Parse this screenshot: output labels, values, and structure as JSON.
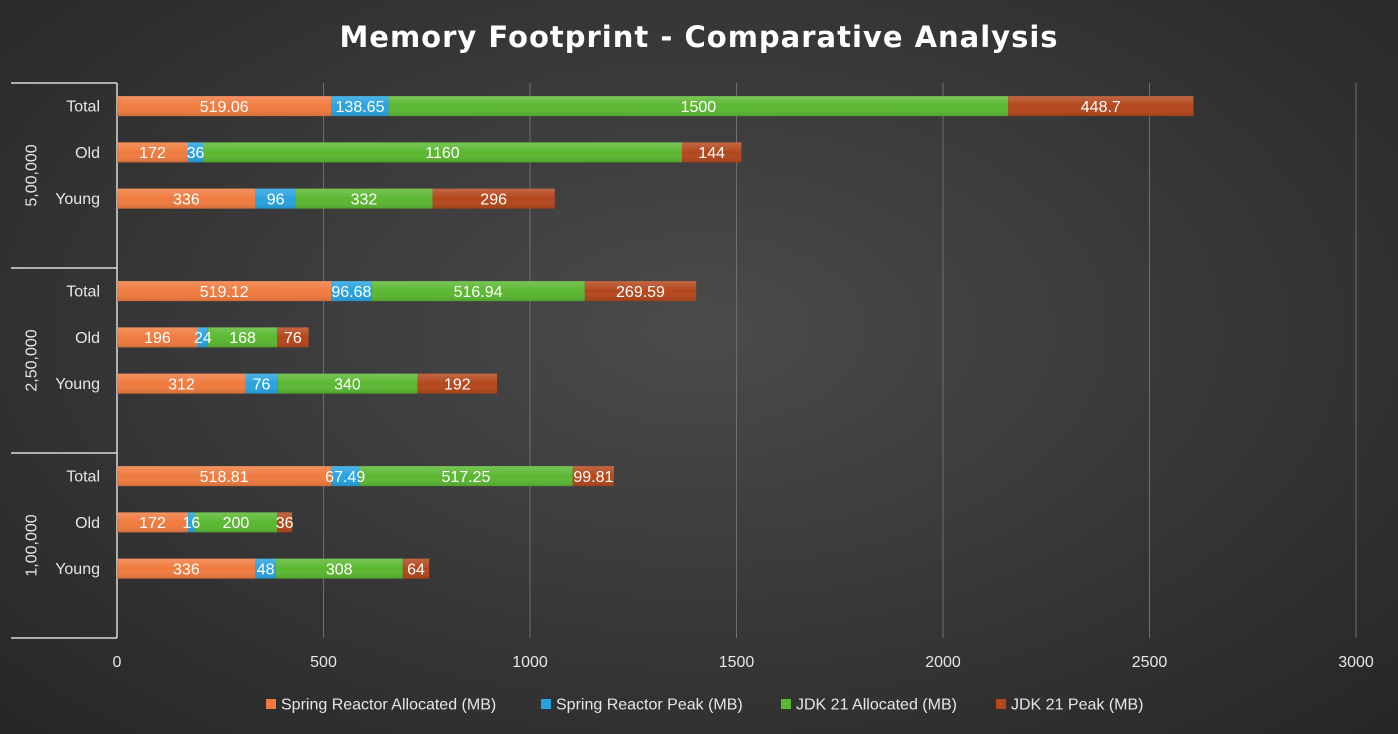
{
  "chart_data": {
    "type": "bar",
    "orientation": "horizontal",
    "stacked": true,
    "title": "Memory Footprint - Comparative Analysis",
    "xlabel": "",
    "ylabel": "",
    "xlim": [
      0,
      3000
    ],
    "x_ticks": [
      "0",
      "500",
      "1000",
      "1500",
      "2000",
      "2500",
      "3000"
    ],
    "grid": "vertical",
    "legend_position": "bottom",
    "groups": [
      {
        "label": "5,00,000",
        "categories": [
          "Total",
          "Old",
          "Young"
        ]
      },
      {
        "label": "2,50,000",
        "categories": [
          "Total",
          "Old",
          "Young"
        ]
      },
      {
        "label": "1,00,000",
        "categories": [
          "Total",
          "Old",
          "Young"
        ]
      }
    ],
    "series": [
      {
        "name": "Spring Reactor Allocated (MB)",
        "color": "#f07b3f",
        "labels": [
          "519.06",
          "172",
          "336",
          "519.12",
          "196",
          "312",
          "518.81",
          "172",
          "336"
        ],
        "values": [
          519.06,
          172,
          336,
          519.12,
          196,
          312,
          518.81,
          172,
          336
        ]
      },
      {
        "name": "Spring Reactor Peak (MB)",
        "color": "#29a3e0",
        "labels": [
          "138.65",
          "36",
          "96",
          "96.68",
          "24",
          "76",
          "67.49",
          "16",
          "48"
        ],
        "values": [
          138.65,
          36,
          96,
          96.68,
          24,
          76,
          67.49,
          16,
          48
        ]
      },
      {
        "name": "JDK 21 Allocated (MB)",
        "color": "#5bb832",
        "labels": [
          "1500",
          "1160",
          "332",
          "516.94",
          "168",
          "340",
          "517.25",
          "200",
          "308"
        ],
        "values": [
          1500,
          1160,
          332,
          516.94,
          168,
          340,
          517.25,
          200,
          308
        ]
      },
      {
        "name": "JDK 21 Peak (MB)",
        "color": "#b4471c",
        "labels": [
          "448.7",
          "144",
          "296",
          "269.59",
          "76",
          "192",
          "99.81",
          "36",
          "64"
        ],
        "values": [
          448.7,
          144,
          296,
          269.59,
          76,
          192,
          99.81,
          36,
          64
        ]
      }
    ]
  }
}
